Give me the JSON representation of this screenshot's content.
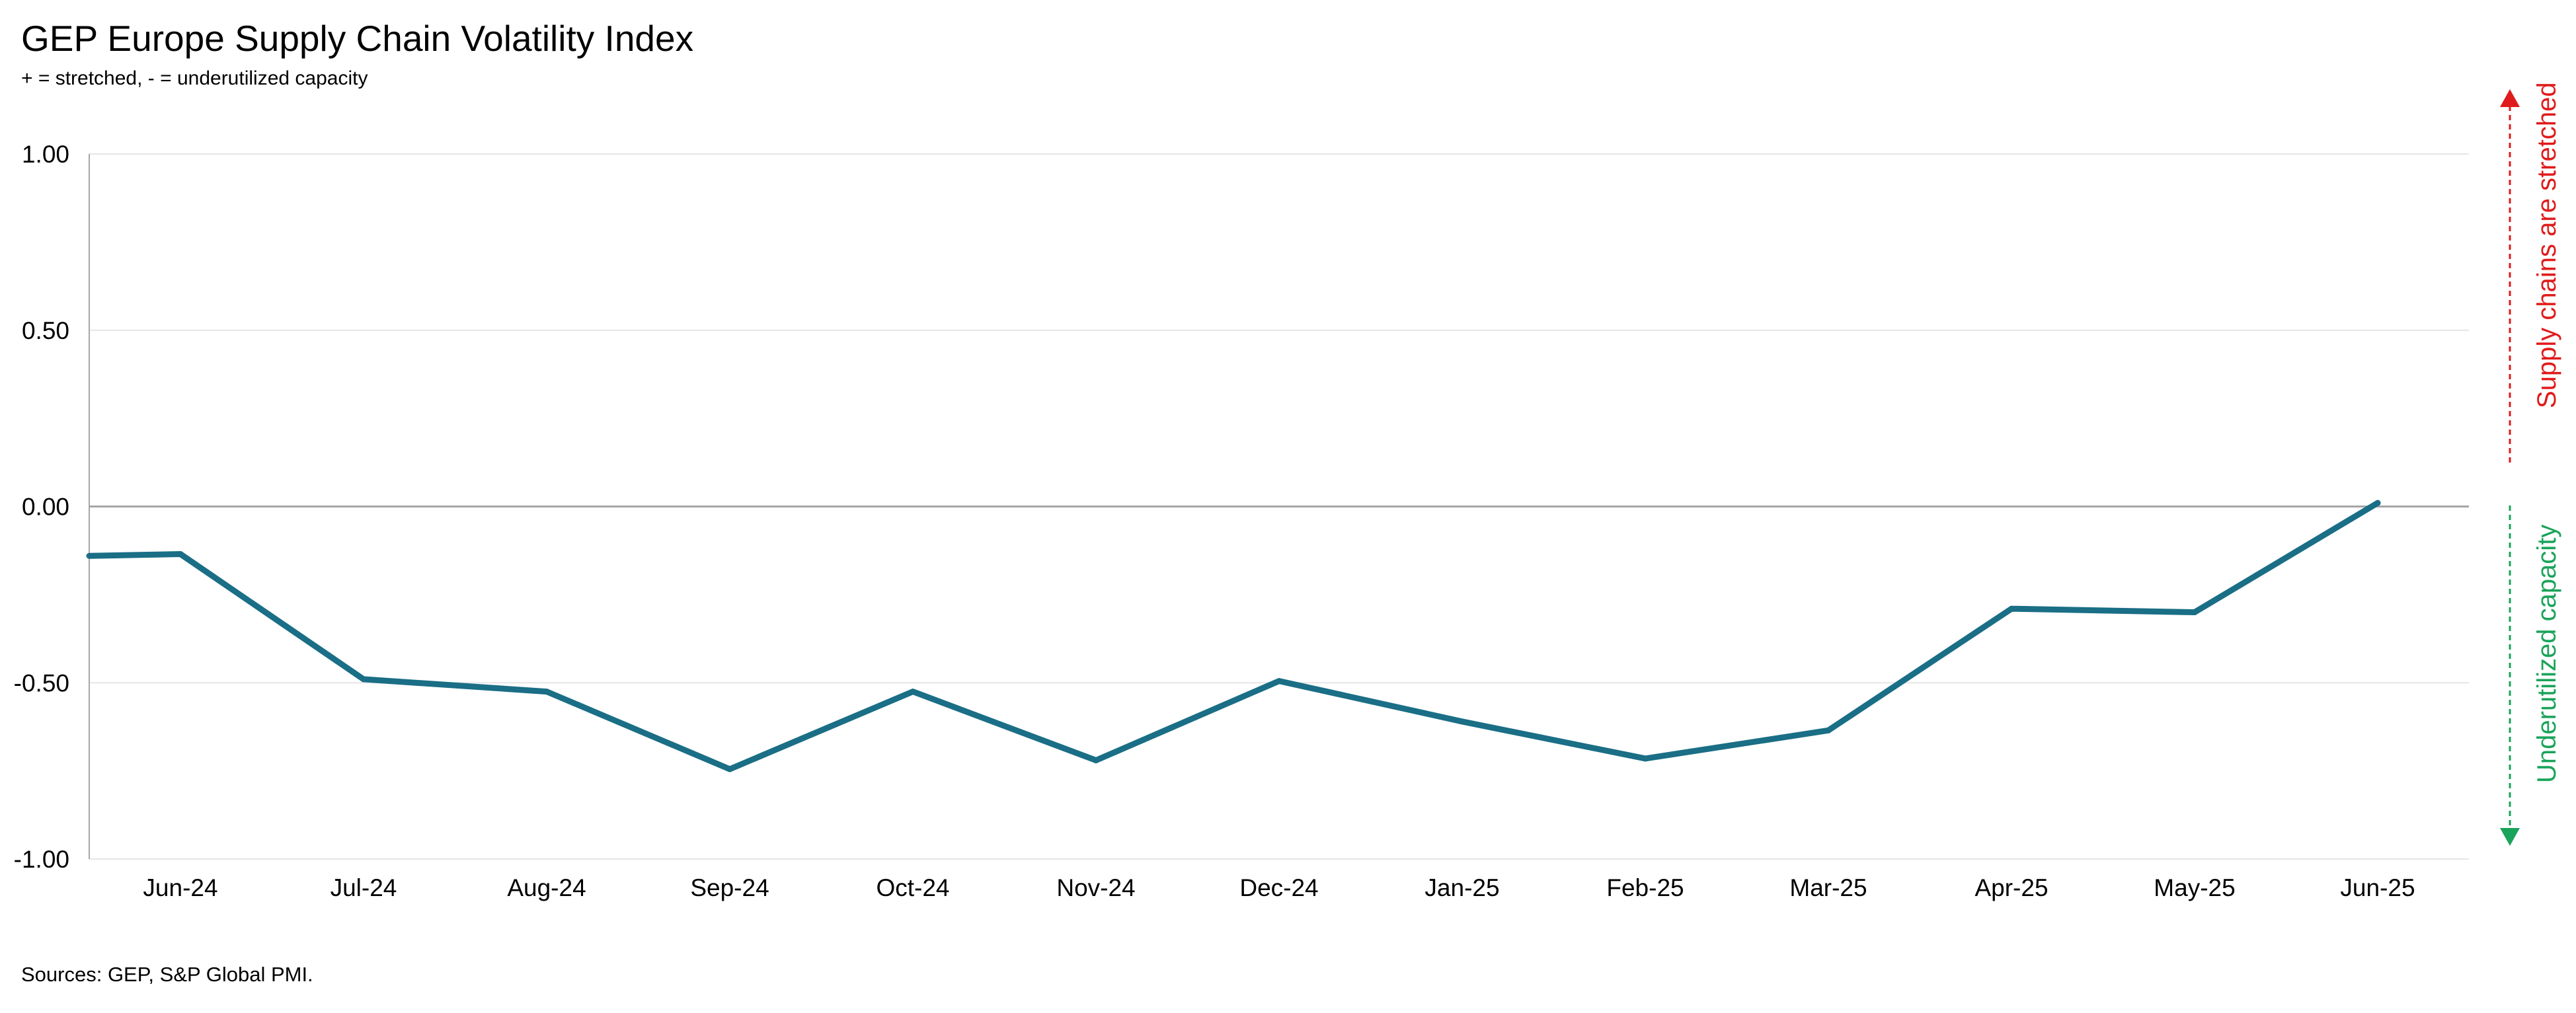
{
  "title": "GEP Europe Supply Chain Volatility Index",
  "subtitle": "+ = stretched, - = underutilized capacity",
  "source": "Sources: GEP, S&P Global PMI.",
  "annotations": {
    "stretched": "Supply chains are stretched",
    "underutilized": "Underutilized capacity"
  },
  "colors": {
    "line": "#1a6e86",
    "stretched": "#e01b1b",
    "underutilized": "#1aa35a",
    "gridline": "#e6e6e6",
    "zero_line": "#a6a6a6",
    "axis": "#a6a6a6"
  },
  "chart_data": {
    "type": "line",
    "title": "GEP Europe Supply Chain Volatility Index",
    "subtitle": "+ = stretched, - = underutilized capacity",
    "categories": [
      "Jun-24",
      "Jul-24",
      "Aug-24",
      "Sep-24",
      "Oct-24",
      "Nov-24",
      "Dec-24",
      "Jan-25",
      "Feb-25",
      "Mar-25",
      "Apr-25",
      "May-25",
      "Jun-25"
    ],
    "start_value": -0.14,
    "values": [
      -0.135,
      -0.49,
      -0.525,
      -0.745,
      -0.525,
      -0.72,
      -0.495,
      -0.61,
      -0.715,
      -0.635,
      -0.29,
      -0.3,
      0.01
    ],
    "ylim": [
      -1.0,
      1.0
    ],
    "yticks": [
      1.0,
      0.5,
      0.0,
      -0.5,
      -1.0
    ],
    "ytick_labels": [
      "1.00",
      "0.50",
      "0.00",
      "-0.50",
      "-1.00"
    ],
    "xlabel": "",
    "ylabel": "",
    "grid": true,
    "legend": "none"
  }
}
